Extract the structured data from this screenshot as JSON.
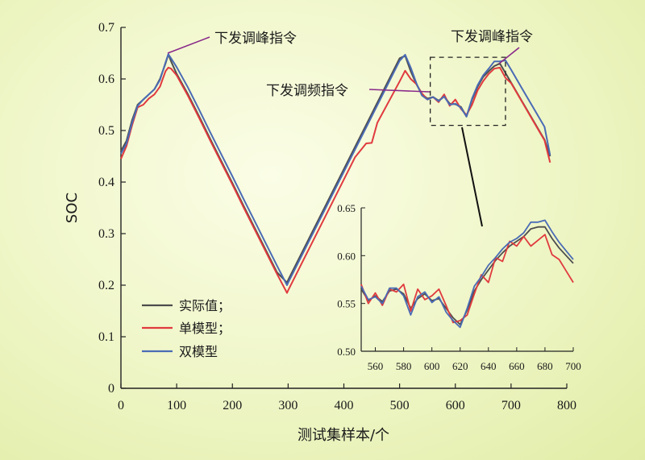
{
  "chart_data": {
    "type": "line",
    "title": "",
    "xlabel": "测试集样本/个",
    "ylabel": "SOC",
    "xlim": [
      0,
      800
    ],
    "ylim": [
      0,
      0.7
    ],
    "xticks": [
      0,
      100,
      200,
      300,
      400,
      500,
      600,
      700,
      800
    ],
    "yticks": [
      0,
      0.1,
      0.2,
      0.3,
      0.4,
      0.5,
      0.6,
      0.7
    ],
    "grid": false,
    "legend_position": "bottom-left",
    "series": [
      {
        "name": "实际值；",
        "color": "#4d4d4d",
        "x": [
          0,
          10,
          20,
          30,
          40,
          50,
          60,
          70,
          80,
          85,
          90,
          100,
          120,
          140,
          160,
          180,
          200,
          220,
          240,
          260,
          280,
          298,
          300,
          320,
          340,
          360,
          380,
          400,
          420,
          440,
          460,
          480,
          500,
          510,
          520,
          530,
          540,
          550,
          560,
          570,
          580,
          590,
          600,
          610,
          620,
          630,
          640,
          650,
          660,
          670,
          680,
          700,
          720,
          740,
          760,
          770
        ],
        "y": [
          0.46,
          0.48,
          0.52,
          0.55,
          0.56,
          0.57,
          0.58,
          0.6,
          0.63,
          0.648,
          0.634,
          0.61,
          0.571,
          0.528,
          0.484,
          0.441,
          0.398,
          0.354,
          0.311,
          0.268,
          0.225,
          0.205,
          0.21,
          0.253,
          0.296,
          0.339,
          0.382,
          0.425,
          0.468,
          0.511,
          0.554,
          0.597,
          0.64,
          0.645,
          0.615,
          0.59,
          0.57,
          0.562,
          0.565,
          0.558,
          0.566,
          0.552,
          0.551,
          0.546,
          0.527,
          0.56,
          0.585,
          0.604,
          0.615,
          0.625,
          0.63,
          0.593,
          0.556,
          0.519,
          0.482,
          0.45
        ]
      },
      {
        "name": "单模型；",
        "color": "#e03a3e",
        "x": [
          0,
          10,
          20,
          30,
          40,
          50,
          60,
          70,
          80,
          85,
          90,
          100,
          120,
          140,
          160,
          180,
          200,
          220,
          240,
          260,
          280,
          298,
          300,
          320,
          340,
          360,
          380,
          400,
          420,
          440,
          450,
          460,
          480,
          500,
          510,
          520,
          530,
          540,
          550,
          560,
          570,
          580,
          590,
          600,
          610,
          620,
          630,
          640,
          650,
          660,
          670,
          680,
          690,
          700,
          720,
          740,
          760,
          770
        ],
        "y": [
          0.445,
          0.47,
          0.51,
          0.545,
          0.55,
          0.562,
          0.57,
          0.585,
          0.615,
          0.622,
          0.62,
          0.607,
          0.568,
          0.525,
          0.481,
          0.438,
          0.395,
          0.351,
          0.308,
          0.265,
          0.222,
          0.185,
          0.19,
          0.233,
          0.276,
          0.319,
          0.362,
          0.405,
          0.448,
          0.475,
          0.476,
          0.515,
          0.555,
          0.595,
          0.616,
          0.6,
          0.59,
          0.572,
          0.56,
          0.565,
          0.555,
          0.57,
          0.548,
          0.56,
          0.542,
          0.53,
          0.55,
          0.578,
          0.596,
          0.61,
          0.62,
          0.622,
          0.602,
          0.592,
          0.555,
          0.518,
          0.481,
          0.438
        ]
      },
      {
        "name": "双模型",
        "color": "#4a6bb5",
        "x": [
          0,
          10,
          20,
          30,
          40,
          50,
          60,
          70,
          80,
          85,
          90,
          100,
          120,
          140,
          160,
          180,
          200,
          220,
          240,
          260,
          280,
          298,
          300,
          320,
          340,
          360,
          380,
          400,
          420,
          440,
          460,
          480,
          500,
          510,
          520,
          530,
          540,
          550,
          560,
          570,
          580,
          590,
          600,
          610,
          620,
          630,
          640,
          650,
          660,
          670,
          680,
          690,
          700,
          720,
          740,
          760,
          770
        ],
        "y": [
          0.455,
          0.475,
          0.515,
          0.548,
          0.56,
          0.57,
          0.58,
          0.598,
          0.632,
          0.648,
          0.64,
          0.623,
          0.584,
          0.541,
          0.497,
          0.454,
          0.411,
          0.367,
          0.324,
          0.281,
          0.238,
          0.2,
          0.205,
          0.248,
          0.291,
          0.334,
          0.377,
          0.42,
          0.463,
          0.506,
          0.549,
          0.592,
          0.635,
          0.647,
          0.622,
          0.592,
          0.568,
          0.56,
          0.565,
          0.557,
          0.566,
          0.55,
          0.552,
          0.544,
          0.527,
          0.562,
          0.588,
          0.607,
          0.62,
          0.634,
          0.634,
          0.636,
          0.618,
          0.581,
          0.544,
          0.507,
          0.452
        ]
      }
    ],
    "annotations": [
      {
        "text": "下发调峰指令",
        "x": 85,
        "y": 0.648
      },
      {
        "text": "下发调峰指令",
        "x": 680,
        "y": 0.634
      },
      {
        "text": "下发调频指令",
        "x": 520,
        "y": 0.56
      }
    ],
    "zoom_box": {
      "xlim": [
        555,
        690
      ],
      "ylim": [
        0.51,
        0.642
      ]
    },
    "inset": {
      "type": "line",
      "xlim": [
        550,
        700
      ],
      "ylim": [
        0.5,
        0.65
      ],
      "xticks": [
        560,
        580,
        600,
        620,
        640,
        660,
        680,
        700
      ],
      "yticks": [
        0.5,
        0.55,
        0.6,
        0.65
      ],
      "series": [
        {
          "name": "实际值；",
          "color": "#4d4d4d",
          "x": [
            550,
            555,
            560,
            565,
            570,
            575,
            580,
            585,
            590,
            595,
            600,
            605,
            610,
            615,
            620,
            625,
            630,
            635,
            640,
            645,
            650,
            655,
            660,
            665,
            670,
            675,
            680,
            685,
            690,
            695,
            700
          ],
          "y": [
            0.565,
            0.553,
            0.558,
            0.552,
            0.563,
            0.565,
            0.56,
            0.545,
            0.555,
            0.56,
            0.553,
            0.555,
            0.545,
            0.535,
            0.528,
            0.543,
            0.563,
            0.575,
            0.585,
            0.595,
            0.603,
            0.61,
            0.615,
            0.62,
            0.628,
            0.63,
            0.63,
            0.618,
            0.608,
            0.6,
            0.592
          ]
        },
        {
          "name": "单模型；",
          "color": "#e03a3e",
          "x": [
            550,
            555,
            560,
            565,
            570,
            575,
            580,
            585,
            590,
            595,
            600,
            605,
            610,
            615,
            620,
            625,
            630,
            635,
            640,
            645,
            650,
            655,
            660,
            665,
            670,
            675,
            680,
            685,
            690,
            695,
            700
          ],
          "y": [
            0.57,
            0.55,
            0.561,
            0.548,
            0.565,
            0.562,
            0.57,
            0.542,
            0.565,
            0.554,
            0.558,
            0.565,
            0.548,
            0.53,
            0.532,
            0.538,
            0.56,
            0.58,
            0.572,
            0.598,
            0.594,
            0.615,
            0.61,
            0.62,
            0.61,
            0.616,
            0.622,
            0.601,
            0.596,
            0.584,
            0.572
          ]
        },
        {
          "name": "双模型",
          "color": "#4a6bb5",
          "x": [
            550,
            555,
            560,
            565,
            570,
            575,
            580,
            585,
            590,
            595,
            600,
            605,
            610,
            615,
            620,
            625,
            630,
            635,
            640,
            645,
            650,
            655,
            660,
            665,
            670,
            675,
            680,
            685,
            690,
            695,
            700
          ],
          "y": [
            0.568,
            0.554,
            0.557,
            0.55,
            0.566,
            0.566,
            0.558,
            0.538,
            0.557,
            0.562,
            0.551,
            0.557,
            0.541,
            0.532,
            0.525,
            0.545,
            0.568,
            0.578,
            0.59,
            0.598,
            0.607,
            0.614,
            0.618,
            0.624,
            0.635,
            0.635,
            0.637,
            0.625,
            0.614,
            0.605,
            0.596
          ]
        }
      ]
    }
  }
}
